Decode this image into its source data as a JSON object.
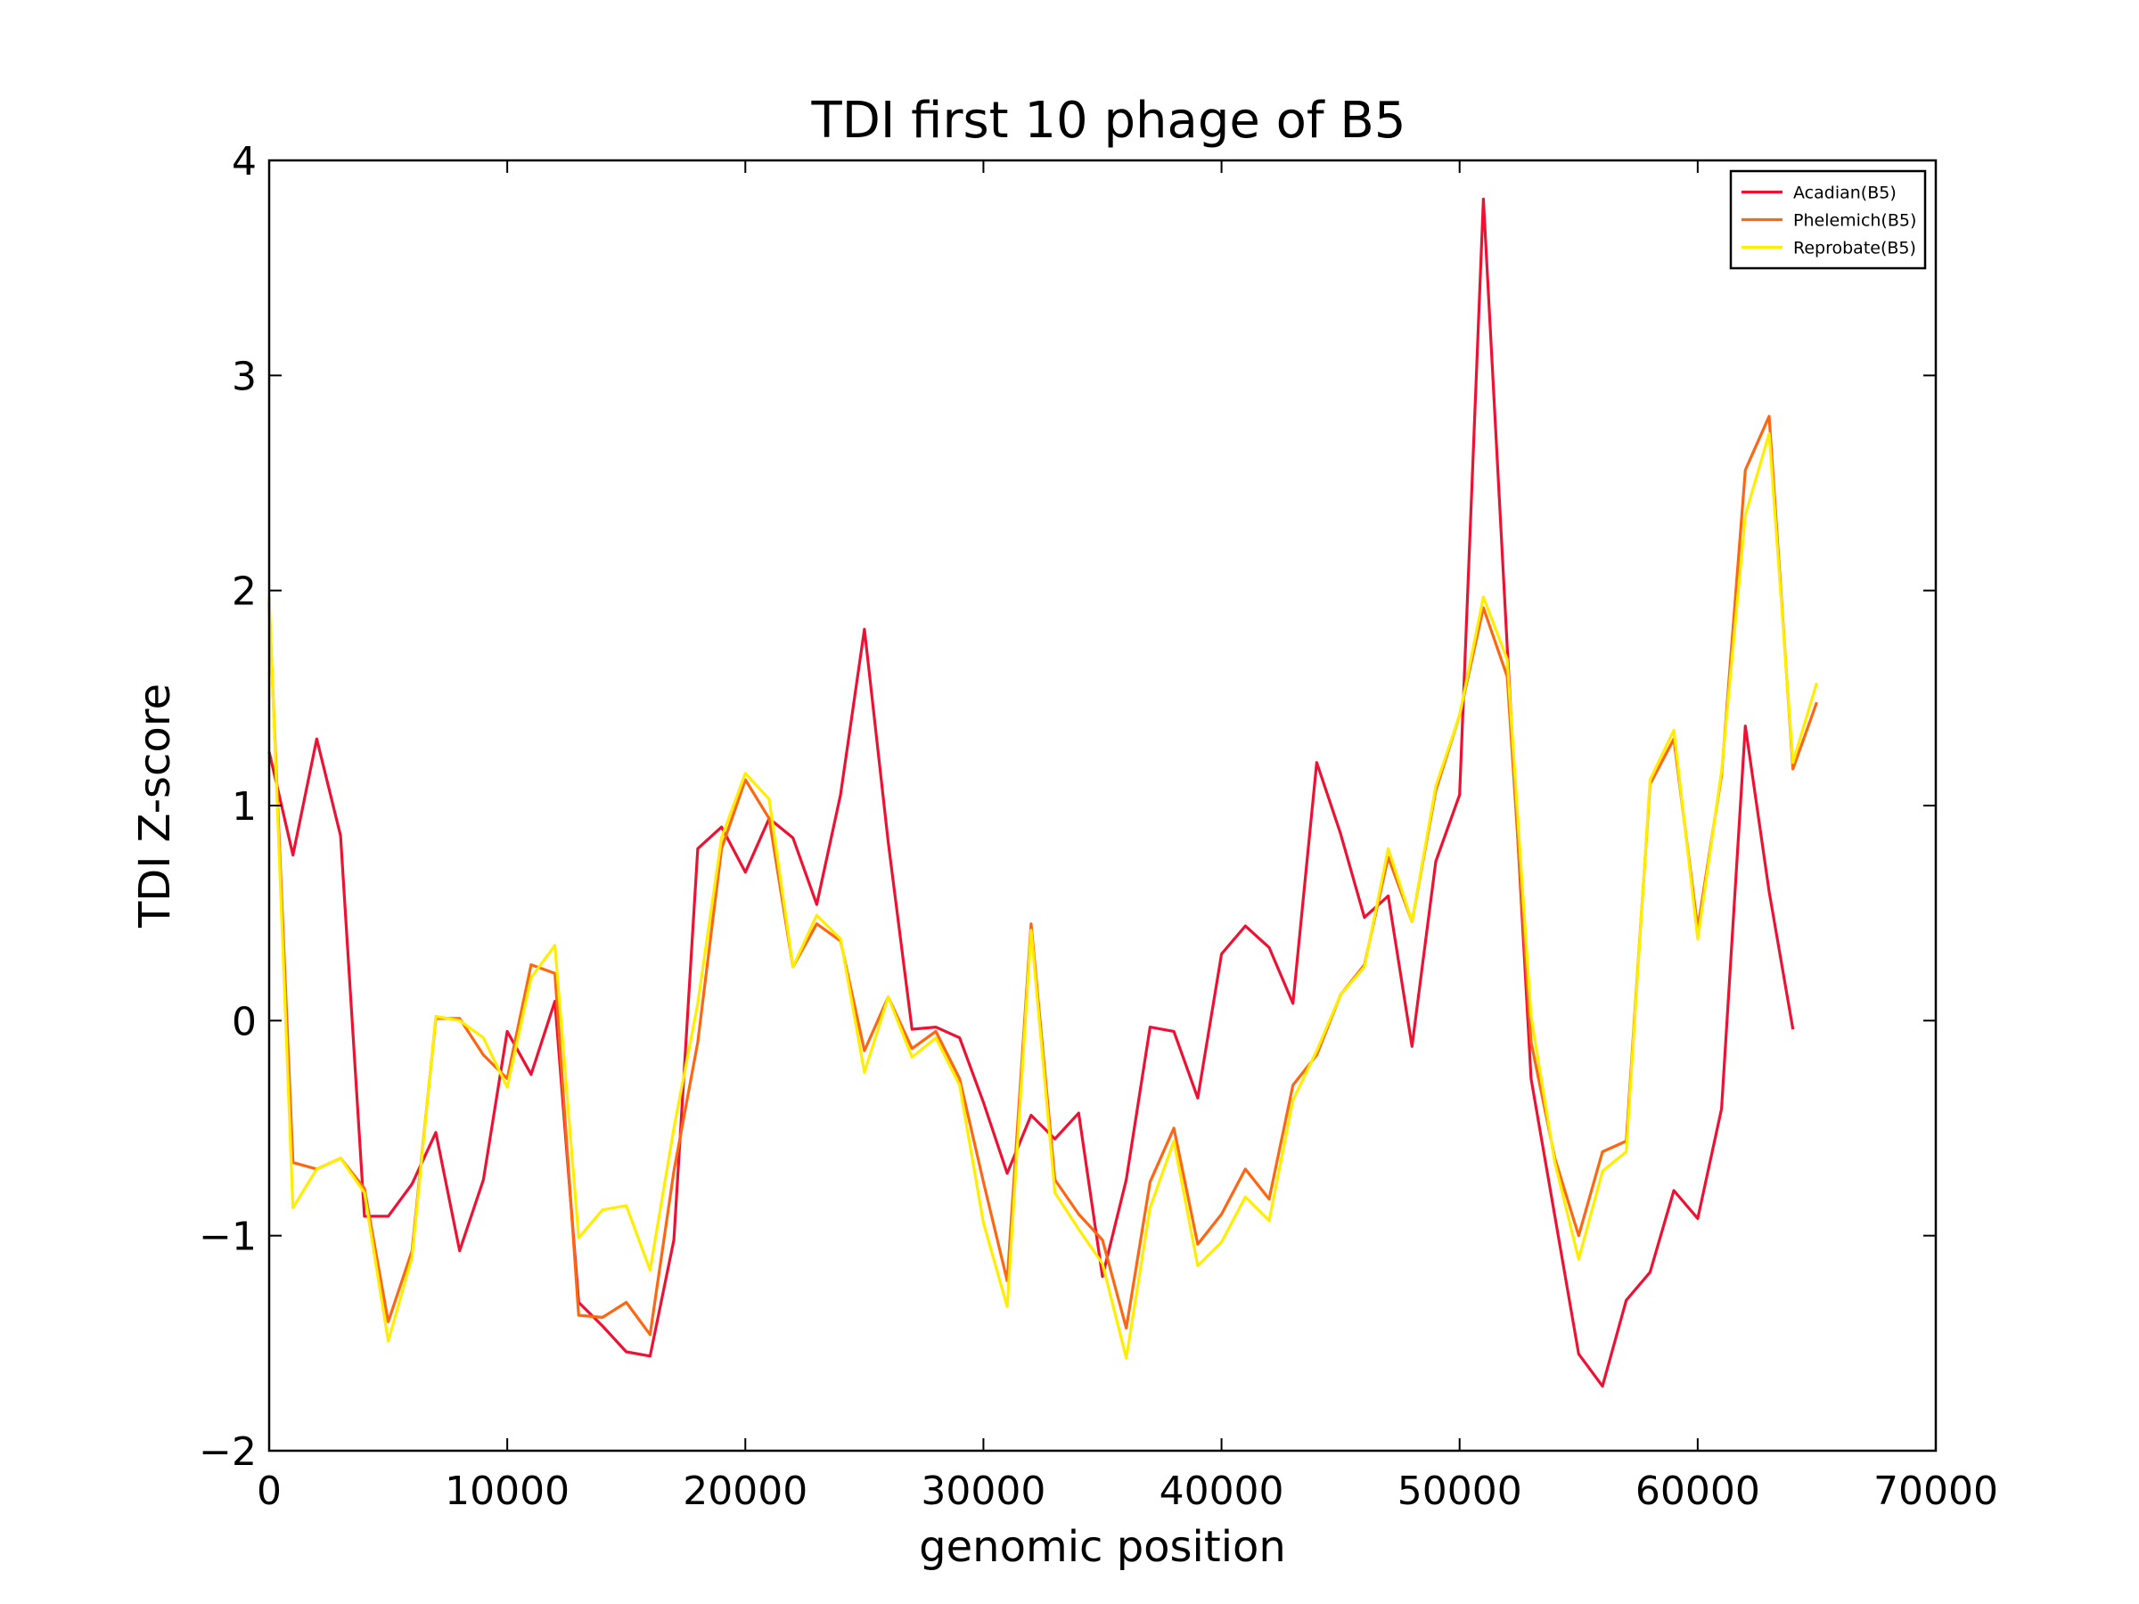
{
  "chart_data": {
    "type": "line",
    "title": "TDI first 10 phage of B5",
    "xlabel": "genomic position",
    "ylabel": "TDI Z-score",
    "xlim": [
      0,
      70000
    ],
    "ylim": [
      -2,
      4
    ],
    "xticks": [
      0,
      10000,
      20000,
      30000,
      40000,
      50000,
      60000,
      70000
    ],
    "xtick_labels": [
      "0",
      "10000",
      "20000",
      "30000",
      "40000",
      "50000",
      "60000",
      "70000"
    ],
    "yticks": [
      -2,
      -1,
      0,
      1,
      2,
      3,
      4
    ],
    "ytick_labels": [
      "−2",
      "−1",
      "0",
      "1",
      "2",
      "3",
      "4"
    ],
    "grid": false,
    "legend_position": "top-right",
    "x": [
      0,
      1000,
      2000,
      3000,
      4000,
      5000,
      6000,
      7000,
      8000,
      9000,
      10000,
      11000,
      12000,
      13000,
      14000,
      15000,
      16000,
      17000,
      18000,
      19000,
      20000,
      21000,
      22000,
      23000,
      24000,
      25000,
      26000,
      27000,
      28000,
      29000,
      30000,
      31000,
      32000,
      33000,
      34000,
      35000,
      36000,
      37000,
      38000,
      39000,
      40000,
      41000,
      42000,
      43000,
      44000,
      45000,
      46000,
      47000,
      48000,
      49000,
      50000,
      51000,
      52000,
      53000,
      54000,
      55000,
      56000,
      57000,
      58000,
      59000,
      60000,
      61000,
      62000,
      63000,
      64000,
      65000
    ],
    "series": [
      {
        "name": "Acadian(B5)",
        "color": "#ee1133",
        "values": [
          1.25,
          0.77,
          1.31,
          0.86,
          -0.91,
          -0.91,
          -0.76,
          -0.52,
          -1.07,
          -0.74,
          -0.05,
          -0.25,
          0.09,
          -1.31,
          -1.42,
          -1.54,
          -1.56,
          -1.02,
          0.8,
          0.9,
          0.69,
          0.94,
          0.85,
          0.54,
          1.05,
          1.82,
          0.83,
          -0.04,
          -0.03,
          -0.08,
          -0.38,
          -0.71,
          -0.44,
          -0.55,
          -0.43,
          -1.19,
          -0.74,
          -0.03,
          -0.05,
          -0.36,
          0.31,
          0.44,
          0.34,
          0.08,
          1.2,
          0.87,
          0.48,
          0.58,
          -0.12,
          0.74,
          1.05,
          3.82,
          1.74,
          -0.27,
          -0.91,
          -1.55,
          -1.7,
          -1.3,
          -1.17,
          -0.79,
          -0.92,
          -0.41,
          1.37,
          0.6,
          -0.04,
          null
        ]
      },
      {
        "name": "Phelemich(B5)",
        "color": "#ff6611",
        "values": [
          1.94,
          -0.66,
          -0.69,
          -0.64,
          -0.78,
          -1.4,
          -1.07,
          0.01,
          0.01,
          -0.16,
          -0.27,
          0.26,
          0.22,
          -1.37,
          -1.38,
          -1.31,
          -1.46,
          -0.7,
          -0.1,
          0.8,
          1.12,
          0.94,
          0.25,
          0.45,
          0.37,
          -0.14,
          0.11,
          -0.13,
          -0.05,
          -0.27,
          -0.75,
          -1.21,
          0.45,
          -0.74,
          -0.9,
          -1.02,
          -1.43,
          -0.75,
          -0.5,
          -1.04,
          -0.9,
          -0.69,
          -0.83,
          -0.3,
          -0.16,
          0.12,
          0.26,
          0.76,
          0.46,
          1.07,
          1.42,
          1.92,
          1.6,
          -0.1,
          -0.64,
          -1.0,
          -0.61,
          -0.56,
          1.1,
          1.31,
          0.43,
          1.14,
          2.56,
          2.81,
          1.17,
          1.48
        ]
      },
      {
        "name": "Reprobate(B5)",
        "color": "#ffee00",
        "values": [
          1.97,
          -0.87,
          -0.69,
          -0.64,
          -0.8,
          -1.49,
          -1.1,
          0.02,
          0.0,
          -0.08,
          -0.31,
          0.2,
          0.35,
          -1.01,
          -0.88,
          -0.86,
          -1.16,
          -0.5,
          0.08,
          0.85,
          1.15,
          1.03,
          0.25,
          0.49,
          0.38,
          -0.24,
          0.11,
          -0.17,
          -0.08,
          -0.3,
          -0.94,
          -1.33,
          0.42,
          -0.8,
          -0.97,
          -1.13,
          -1.57,
          -0.87,
          -0.56,
          -1.14,
          -1.03,
          -0.82,
          -0.93,
          -0.37,
          -0.14,
          0.12,
          0.25,
          0.8,
          0.46,
          1.09,
          1.42,
          1.97,
          1.68,
          0.02,
          -0.66,
          -1.11,
          -0.7,
          -0.61,
          1.12,
          1.35,
          0.38,
          1.16,
          2.35,
          2.73,
          1.2,
          1.57
        ]
      }
    ]
  }
}
